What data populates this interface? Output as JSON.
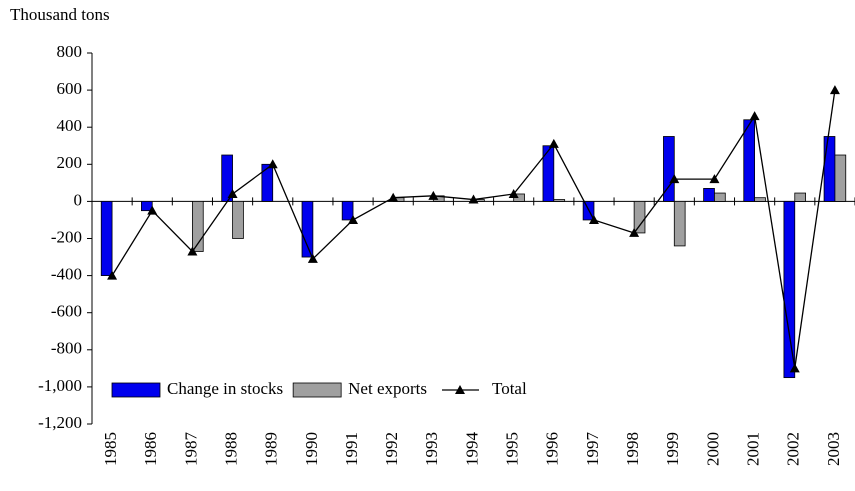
{
  "chart_data": {
    "type": "bar",
    "y_label": "Thousand tons",
    "categories": [
      "1985",
      "1986",
      "1987",
      "1988",
      "1989",
      "1990",
      "1991",
      "1992",
      "1993",
      "1994",
      "1995",
      "1996",
      "1997",
      "1998",
      "1999",
      "2000",
      "2001",
      "2002",
      "2003"
    ],
    "series": [
      {
        "name": "Change in stocks",
        "color": "#0000ee",
        "type": "bar",
        "values": [
          -400,
          -50,
          0,
          250,
          200,
          -300,
          -100,
          0,
          0,
          0,
          0,
          300,
          -100,
          0,
          350,
          70,
          440,
          -950,
          350
        ]
      },
      {
        "name": "Net exports",
        "color": "#a0a0a0",
        "type": "bar",
        "values": [
          0,
          0,
          -270,
          -200,
          0,
          0,
          0,
          20,
          30,
          10,
          40,
          10,
          0,
          -170,
          -240,
          45,
          20,
          45,
          250
        ]
      },
      {
        "name": "Total",
        "color": "#000000",
        "type": "line",
        "values": [
          -400,
          -50,
          -270,
          40,
          200,
          -310,
          -100,
          20,
          30,
          10,
          40,
          310,
          -100,
          -170,
          120,
          120,
          460,
          -900,
          600
        ]
      }
    ],
    "ylim": [
      -1200,
      800
    ],
    "yticks": [
      {
        "value": -1200,
        "label": "-1,200"
      },
      {
        "value": -1000,
        "label": "-1,000"
      },
      -800,
      -600,
      -400,
      -200,
      0,
      200,
      400,
      600,
      800
    ],
    "legend": "bottom-left"
  }
}
